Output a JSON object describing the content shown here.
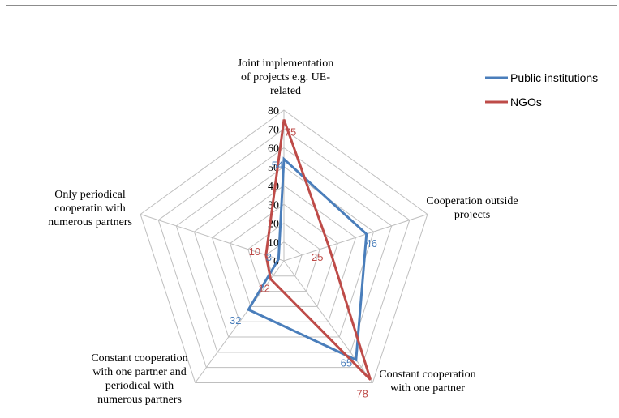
{
  "chart_data": {
    "type": "radar",
    "categories": [
      "Joint implementation of projects e.g. UE-related",
      "Cooperation outside projects",
      "Constant cooperation with one partner",
      "Constant cooperation with one partner and periodical with numerous partners",
      "Only periodical cooperatin with numerous partners"
    ],
    "category_label_lines": [
      [
        "Joint implementation",
        "of projects e.g. UE-",
        "related"
      ],
      [
        "Cooperation outside",
        "projects"
      ],
      [
        "Constant cooperation",
        "with one partner"
      ],
      [
        "Constant cooperation",
        "with one partner and",
        "periodical with",
        "numerous partners"
      ],
      [
        "Only periodical",
        "cooperatin with",
        "numerous partners"
      ]
    ],
    "series": [
      {
        "name": "Public institutions",
        "color": "#4a7ebb",
        "values": [
          54,
          46,
          65,
          32,
          3
        ]
      },
      {
        "name": "NGOs",
        "color": "#be4b48",
        "values": [
          75,
          25,
          78,
          12,
          10
        ]
      }
    ],
    "radial_axis": {
      "min": 0,
      "max": 80,
      "step": 10,
      "ticks": [
        "0",
        "10",
        "20",
        "30",
        "40",
        "50",
        "60",
        "70",
        "80"
      ]
    },
    "grid": true,
    "data_labels": true,
    "legend_position": "top-right"
  }
}
